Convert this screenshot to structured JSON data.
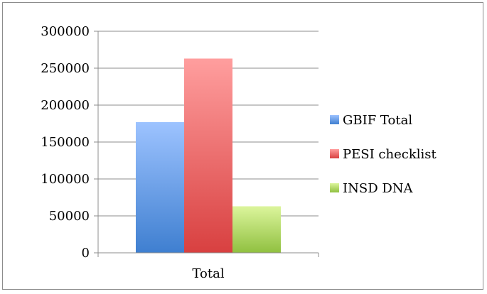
{
  "chart_data": {
    "type": "bar",
    "categories": [
      "Total"
    ],
    "series": [
      {
        "name": "GBIF Total",
        "values": [
          177000
        ],
        "color_top": "#9dc3ff",
        "color_bottom": "#3f7fd0"
      },
      {
        "name": "PESI checklist",
        "values": [
          263000
        ],
        "color_top": "#ff9e9e",
        "color_bottom": "#d84040"
      },
      {
        "name": "INSD DNA",
        "values": [
          63000
        ],
        "color_top": "#dcf59c",
        "color_bottom": "#90c040"
      }
    ],
    "yticks": [
      "0",
      "50000",
      "100000",
      "150000",
      "200000",
      "250000",
      "300000"
    ],
    "ylim": [
      0,
      300000
    ],
    "grid": true,
    "legend_position": "right"
  }
}
